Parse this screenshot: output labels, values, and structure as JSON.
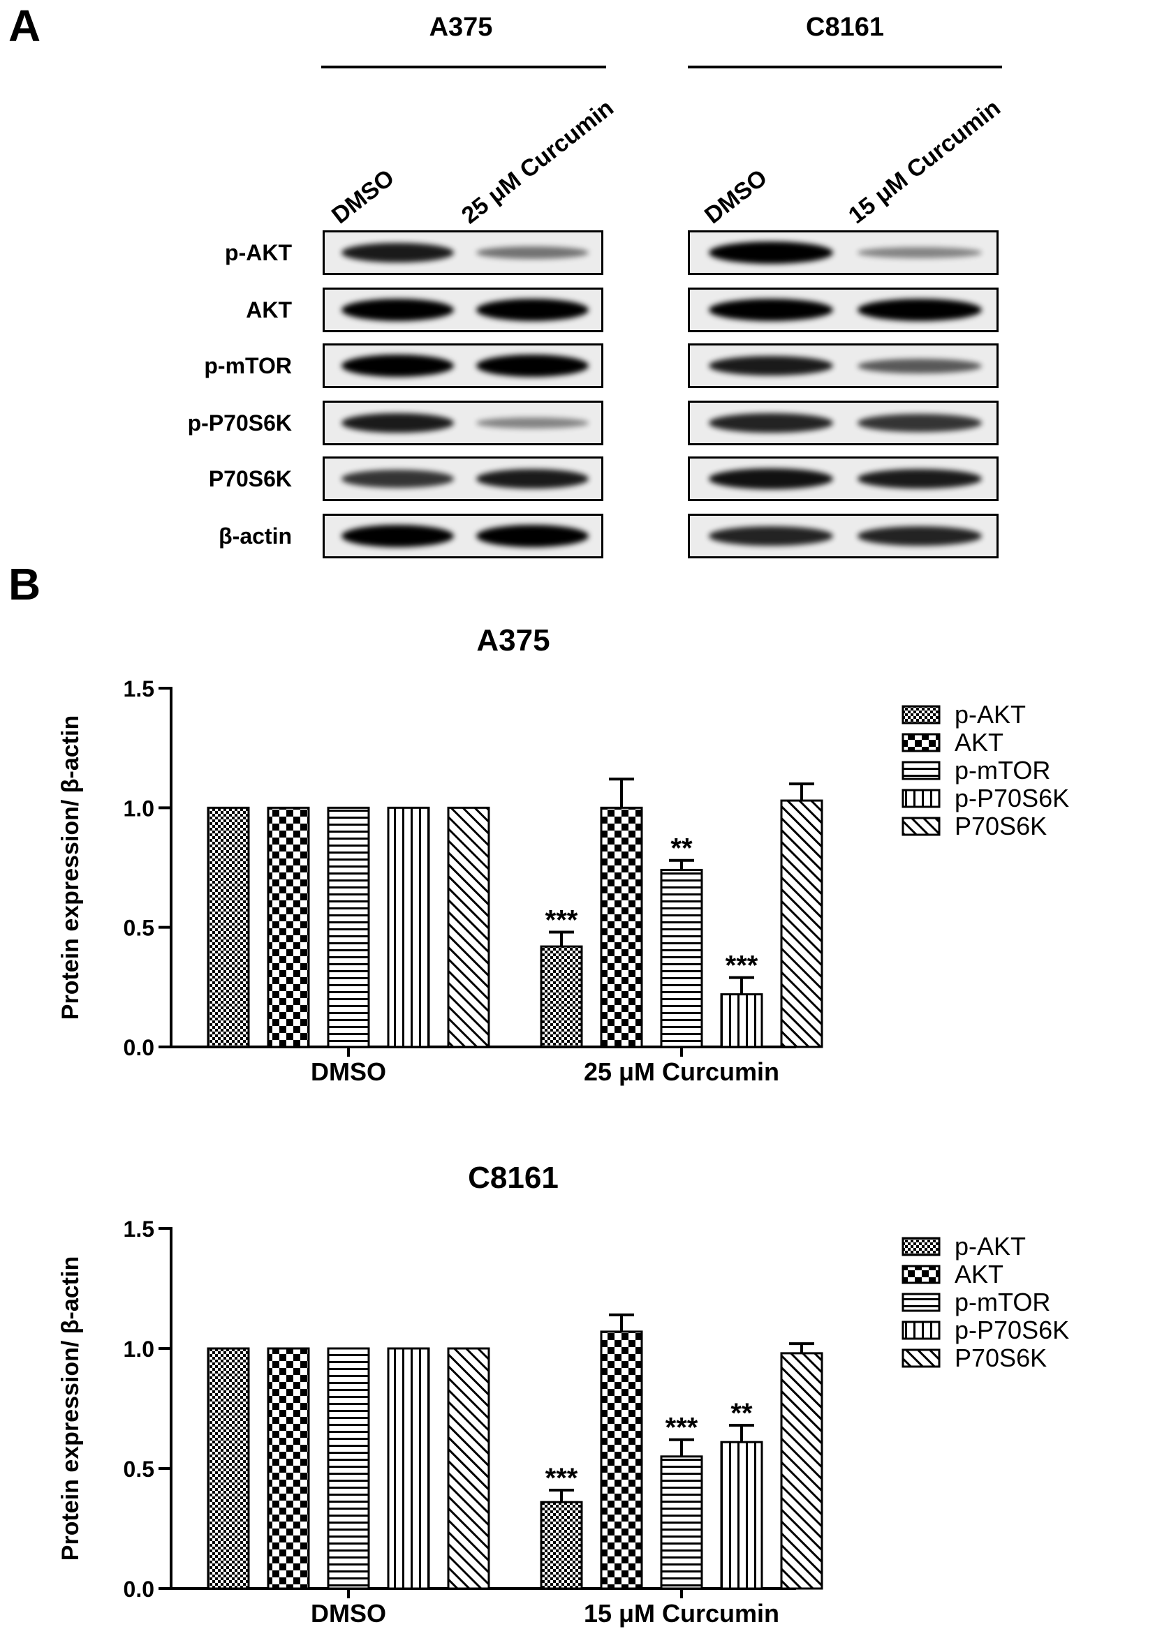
{
  "panelA": {
    "label": "A",
    "groups": [
      {
        "name": "A375",
        "lanes": [
          "DMSO",
          "25 μM Curcumin"
        ]
      },
      {
        "name": "C8161",
        "lanes": [
          "DMSO",
          "15 μM Curcumin"
        ]
      }
    ],
    "rows": [
      "p-AKT",
      "AKT",
      "p-mTOR",
      "p-P70S6K",
      "P70S6K",
      "β-actin"
    ],
    "band_intensity": {
      "A375": [
        [
          0.85,
          0.35
        ],
        [
          1.0,
          1.0
        ],
        [
          1.0,
          1.0
        ],
        [
          0.85,
          0.25
        ],
        [
          0.7,
          0.85
        ],
        [
          1.0,
          1.0
        ]
      ],
      "C8161": [
        [
          1.0,
          0.25
        ],
        [
          1.0,
          1.0
        ],
        [
          0.85,
          0.5
        ],
        [
          0.8,
          0.7
        ],
        [
          0.9,
          0.85
        ],
        [
          0.8,
          0.8
        ]
      ]
    }
  },
  "panelB": {
    "label": "B"
  },
  "chart_data": [
    {
      "type": "bar",
      "title": "A375",
      "ylabel": "Protein expression/ β-actin",
      "xlabel": "",
      "categories": [
        "DMSO",
        "25 μM Curcumin"
      ],
      "ylim": [
        0,
        1.5
      ],
      "yticks": [
        "0.0",
        "0.5",
        "1.0",
        "1.5"
      ],
      "legend_position": "right",
      "series": [
        {
          "name": "p-AKT",
          "pattern": "dots",
          "values": [
            1.0,
            0.42
          ],
          "errors": [
            0,
            0.06
          ],
          "annotations": [
            "",
            "***"
          ]
        },
        {
          "name": "AKT",
          "pattern": "checker",
          "values": [
            1.0,
            1.0
          ],
          "errors": [
            0,
            0.12
          ],
          "annotations": [
            "",
            ""
          ]
        },
        {
          "name": "p-mTOR",
          "pattern": "hstripes",
          "values": [
            1.0,
            0.74
          ],
          "errors": [
            0,
            0.04
          ],
          "annotations": [
            "",
            "**"
          ]
        },
        {
          "name": "p-P70S6K",
          "pattern": "vstripes",
          "values": [
            1.0,
            0.22
          ],
          "errors": [
            0,
            0.07
          ],
          "annotations": [
            "",
            "***"
          ]
        },
        {
          "name": "P70S6K",
          "pattern": "diagonal",
          "values": [
            1.0,
            1.03
          ],
          "errors": [
            0,
            0.07
          ],
          "annotations": [
            "",
            ""
          ]
        }
      ]
    },
    {
      "type": "bar",
      "title": "C8161",
      "ylabel": "Protein expression/ β-actin",
      "xlabel": "",
      "categories": [
        "DMSO",
        "15 μM Curcumin"
      ],
      "ylim": [
        0,
        1.5
      ],
      "yticks": [
        "0.0",
        "0.5",
        "1.0",
        "1.5"
      ],
      "legend_position": "right",
      "series": [
        {
          "name": "p-AKT",
          "pattern": "dots",
          "values": [
            1.0,
            0.36
          ],
          "errors": [
            0,
            0.05
          ],
          "annotations": [
            "",
            "***"
          ]
        },
        {
          "name": "AKT",
          "pattern": "checker",
          "values": [
            1.0,
            1.07
          ],
          "errors": [
            0,
            0.07
          ],
          "annotations": [
            "",
            ""
          ]
        },
        {
          "name": "p-mTOR",
          "pattern": "hstripes",
          "values": [
            1.0,
            0.55
          ],
          "errors": [
            0,
            0.07
          ],
          "annotations": [
            "",
            "***"
          ]
        },
        {
          "name": "p-P70S6K",
          "pattern": "vstripes",
          "values": [
            1.0,
            0.61
          ],
          "errors": [
            0,
            0.07
          ],
          "annotations": [
            "",
            "**"
          ]
        },
        {
          "name": "P70S6K",
          "pattern": "diagonal",
          "values": [
            1.0,
            0.98
          ],
          "errors": [
            0,
            0.04
          ],
          "annotations": [
            "",
            ""
          ]
        }
      ]
    }
  ]
}
